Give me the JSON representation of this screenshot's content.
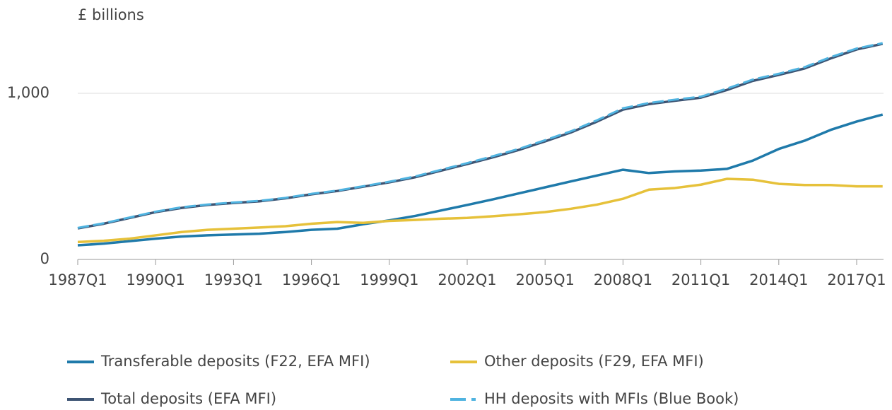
{
  "chart_data": {
    "type": "line",
    "y_label": "£ billions",
    "categories": [
      "1987Q1",
      null,
      null,
      "1990Q1",
      null,
      null,
      "1993Q1",
      null,
      null,
      "1996Q1",
      null,
      null,
      "1999Q1",
      null,
      null,
      "2002Q1",
      null,
      null,
      "2005Q1",
      null,
      null,
      "2008Q1",
      null,
      null,
      "2011Q1",
      null,
      null,
      "2014Q1",
      null,
      null,
      "2017Q1",
      null
    ],
    "ylim": [
      0,
      1400
    ],
    "yticks": [
      0,
      {
        "value": 1000,
        "label": "1,000"
      }
    ],
    "grid": true,
    "series": [
      {
        "name": "Transferable deposits (F22, EFA MFI)",
        "color": "#1f7aaa",
        "values": [
          85,
          95,
          110,
          125,
          138,
          145,
          150,
          155,
          165,
          178,
          185,
          212,
          235,
          262,
          295,
          328,
          362,
          398,
          434,
          470,
          505,
          540,
          520,
          530,
          535,
          545,
          595,
          665,
          715,
          780,
          830,
          872
        ]
      },
      {
        "name": "Other deposits (F29, EFA MFI)",
        "color": "#e6c13a",
        "values": [
          105,
          112,
          125,
          145,
          165,
          178,
          185,
          192,
          200,
          215,
          225,
          220,
          232,
          238,
          245,
          250,
          260,
          272,
          285,
          305,
          330,
          365,
          420,
          430,
          450,
          485,
          480,
          455,
          448,
          448,
          440,
          440
        ]
      },
      {
        "name": "Total deposits (EFA MFI)",
        "color": "#3d5473",
        "values": [
          187,
          215,
          250,
          285,
          310,
          328,
          340,
          350,
          368,
          392,
          412,
          438,
          464,
          495,
          535,
          574,
          615,
          660,
          711,
          765,
          830,
          902,
          935,
          955,
          974,
          1020,
          1075,
          1111,
          1150,
          1210,
          1264,
          1298
        ]
      },
      {
        "name": "HH deposits with MFIs (Blue Book)",
        "color": "#4fb3e0",
        "dashed": true,
        "values": [
          190,
          218,
          253,
          288,
          314,
          331,
          343,
          353,
          371,
          395,
          415,
          441,
          468,
          500,
          540,
          580,
          622,
          666,
          718,
          772,
          838,
          910,
          942,
          962,
          980,
          1028,
          1083,
          1118,
          1158,
          1218,
          1270,
          1302
        ]
      }
    ]
  }
}
